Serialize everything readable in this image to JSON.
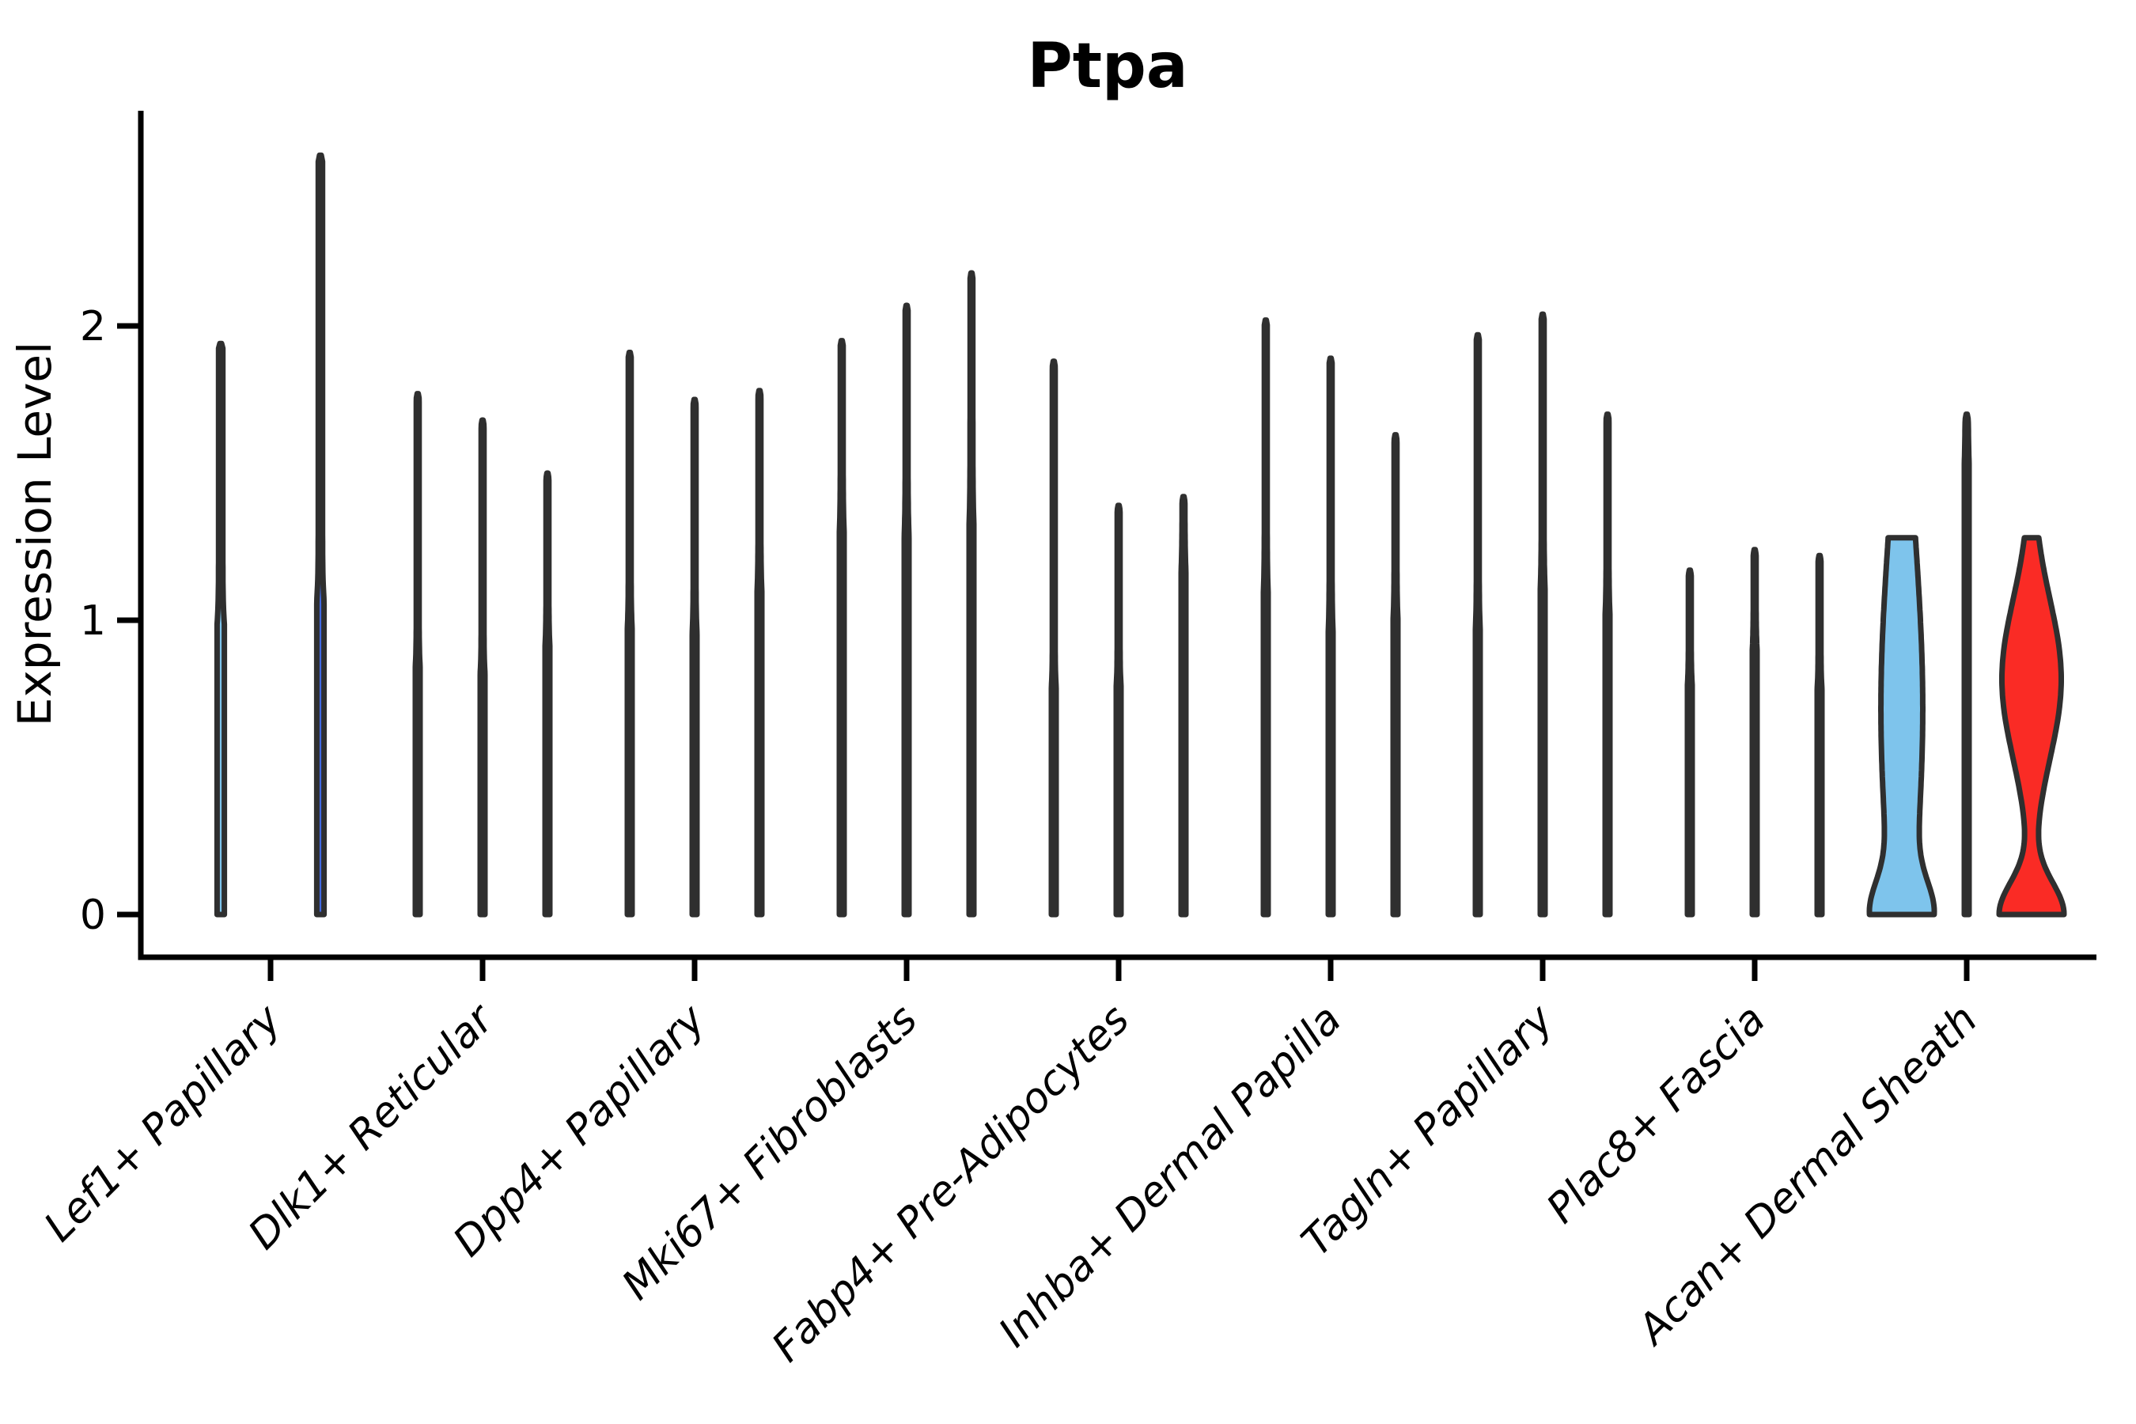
{
  "title": "Ptpa",
  "y_axis": {
    "label": "Expression Level",
    "ticks": [
      "0",
      "1",
      "2"
    ]
  },
  "colors": {
    "light_blue": "#7EC4EC",
    "royal_blue": "#4169E1",
    "red": "#FA2B25",
    "outline": "#2F2F2F",
    "axis": "#000000",
    "background": "#ffffff"
  },
  "chart_data": {
    "type": "violin",
    "title": "Ptpa",
    "xlabel": "",
    "ylabel": "Expression Level",
    "ylim": [
      -0.15,
      2.75
    ],
    "yticks": [
      0,
      1,
      2
    ],
    "grid": false,
    "legend": "none",
    "categories": [
      "Lef1+ Papillary",
      "Dlk1+ Reticular",
      "Dpp4+ Papillary",
      "Mki67+ Fibroblasts",
      "Fabp4+ Pre-Adipocytes",
      "Inhba+ Dermal Papilla",
      "Tagln+ Papillary",
      "Plac8+ Fascia",
      "Acan+ Dermal Sheath"
    ],
    "series_colors": [
      "light_blue",
      "royal_blue",
      "red"
    ],
    "violin_description": "Zero-inflated expression densities: wide base at 0, mid bulge (center/amp/sigma in expression units), thin stem spike up to max. flat_top=true means density is clipped flat at max.",
    "violins": [
      {
        "category": "Lef1+ Papillary",
        "items": [
          {
            "color": "light_blue",
            "max": 1.94,
            "bulge_center": 0.64,
            "bulge_amp": 0.5,
            "bulge_sigma": 0.21
          },
          {
            "color": "royal_blue",
            "max": 2.58,
            "bulge_center": 0.68,
            "bulge_amp": 0.55,
            "bulge_sigma": 0.23
          }
        ]
      },
      {
        "category": "Dlk1+ Reticular",
        "items": [
          {
            "color": "light_blue",
            "max": 1.77,
            "bulge_center": 0.55,
            "bulge_amp": 0.45,
            "bulge_sigma": 0.18
          },
          {
            "color": "royal_blue",
            "max": 1.68,
            "bulge_center": 0.52,
            "bulge_amp": 0.5,
            "bulge_sigma": 0.18
          },
          {
            "color": "red",
            "max": 1.5,
            "bulge_center": 0.55,
            "bulge_amp": 0.62,
            "bulge_sigma": 0.21
          }
        ]
      },
      {
        "category": "Dpp4+ Papillary",
        "items": [
          {
            "color": "light_blue",
            "max": 1.91,
            "bulge_center": 0.62,
            "bulge_amp": 0.55,
            "bulge_sigma": 0.21
          },
          {
            "color": "royal_blue",
            "max": 1.75,
            "bulge_center": 0.6,
            "bulge_amp": 0.58,
            "bulge_sigma": 0.21
          },
          {
            "color": "red",
            "max": 1.78,
            "bulge_center": 0.66,
            "bulge_amp": 0.7,
            "bulge_sigma": 0.25
          }
        ]
      },
      {
        "category": "Mki67+ Fibroblasts",
        "items": [
          {
            "color": "light_blue",
            "max": 1.95,
            "bulge_center": 0.75,
            "bulge_amp": 0.92,
            "bulge_sigma": 0.3
          },
          {
            "color": "royal_blue",
            "max": 2.07,
            "bulge_center": 0.72,
            "bulge_amp": 0.92,
            "bulge_sigma": 0.31
          },
          {
            "color": "red",
            "max": 2.18,
            "bulge_center": 0.7,
            "bulge_amp": 0.98,
            "bulge_sigma": 0.34
          }
        ]
      },
      {
        "category": "Fabp4+ Pre-Adipocytes",
        "items": [
          {
            "color": "light_blue",
            "max": 1.88,
            "bulge_center": 0.5,
            "bulge_amp": 0.42,
            "bulge_sigma": 0.17
          },
          {
            "color": "royal_blue",
            "max": 1.39,
            "bulge_center": 0.5,
            "bulge_amp": 0.45,
            "bulge_sigma": 0.17
          },
          {
            "color": "red",
            "max": 1.42,
            "bulge_center": 0.68,
            "bulge_amp": 0.82,
            "bulge_sigma": 0.27
          }
        ]
      },
      {
        "category": "Inhba+ Dermal Papilla",
        "items": [
          {
            "color": "light_blue",
            "max": 2.02,
            "bulge_center": 0.66,
            "bulge_amp": 0.34,
            "bulge_sigma": 0.28
          },
          {
            "color": "royal_blue",
            "max": 1.89,
            "bulge_center": 0.6,
            "bulge_amp": 0.3,
            "bulge_sigma": 0.24
          },
          {
            "color": "red",
            "max": 1.63,
            "bulge_center": 0.58,
            "bulge_amp": 0.75,
            "bulge_sigma": 0.24
          }
        ]
      },
      {
        "category": "Tagln+ Papillary",
        "items": [
          {
            "color": "light_blue",
            "max": 1.97,
            "bulge_center": 0.62,
            "bulge_amp": 0.42,
            "bulge_sigma": 0.22
          },
          {
            "color": "royal_blue",
            "max": 2.04,
            "bulge_center": 0.72,
            "bulge_amp": 0.45,
            "bulge_sigma": 0.24
          },
          {
            "color": "red",
            "max": 1.7,
            "bulge_center": 0.6,
            "bulge_amp": 0.68,
            "bulge_sigma": 0.24
          }
        ]
      },
      {
        "category": "Plac8+ Fascia",
        "items": [
          {
            "color": "light_blue",
            "max": 1.17,
            "bulge_center": 0.5,
            "bulge_amp": 0.5,
            "bulge_sigma": 0.17
          },
          {
            "color": "royal_blue",
            "max": 1.24,
            "bulge_center": 0.58,
            "bulge_amp": 0.55,
            "bulge_sigma": 0.19
          },
          {
            "color": "red",
            "max": 1.22,
            "bulge_center": 0.48,
            "bulge_amp": 0.55,
            "bulge_sigma": 0.17
          }
        ]
      },
      {
        "category": "Acan+ Dermal Sheath",
        "items": [
          {
            "color": "light_blue",
            "max": 1.28,
            "bulge_center": 0.7,
            "bulge_amp": 0.85,
            "bulge_sigma": 0.8,
            "flat_top": true,
            "stem": 0.15
          },
          {
            "color": "royal_blue",
            "max": 1.7,
            "bulge_center": 0.72,
            "bulge_amp": 0.95,
            "bulge_sigma": 0.45
          },
          {
            "color": "red",
            "max": 1.28,
            "bulge_center": 0.8,
            "bulge_amp": 0.92,
            "bulge_sigma": 0.38,
            "flat_top": true,
            "stem": 0.05
          }
        ]
      }
    ]
  }
}
